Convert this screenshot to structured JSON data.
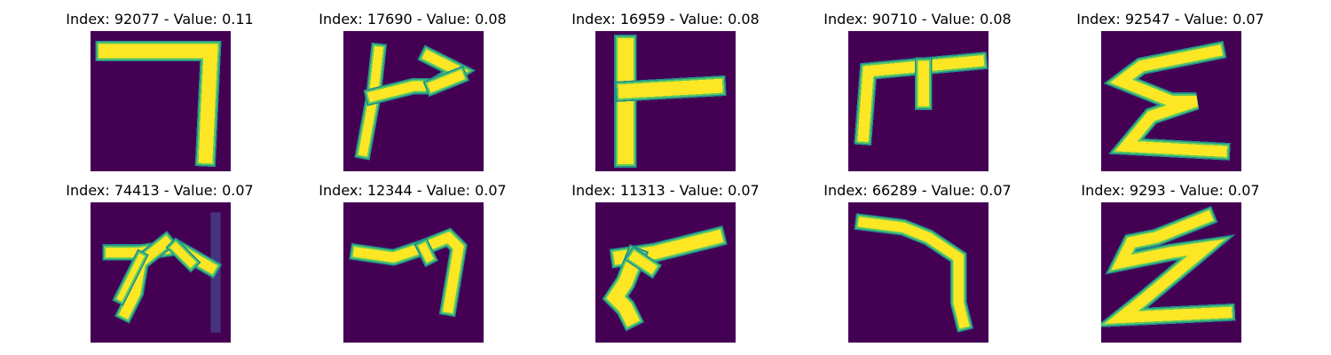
{
  "colors": {
    "background": "#440154",
    "edge": "#21918c",
    "mid": "#5ec962",
    "stroke": "#fde725",
    "faint": "#46337e"
  },
  "panels": [
    {
      "title": "Index: 92077 - Value: 0.11"
    },
    {
      "title": "Index: 17690 - Value: 0.08"
    },
    {
      "title": "Index: 16959 - Value: 0.08"
    },
    {
      "title": "Index: 90710 - Value: 0.08"
    },
    {
      "title": "Index: 92547 - Value: 0.07"
    },
    {
      "title": "Index: 74413 - Value: 0.07"
    },
    {
      "title": "Index: 12344 - Value: 0.07"
    },
    {
      "title": "Index: 11313 - Value: 0.07"
    },
    {
      "title": "Index: 66289 - Value: 0.07"
    },
    {
      "title": "Index: 9293 - Value: 0.07"
    }
  ]
}
